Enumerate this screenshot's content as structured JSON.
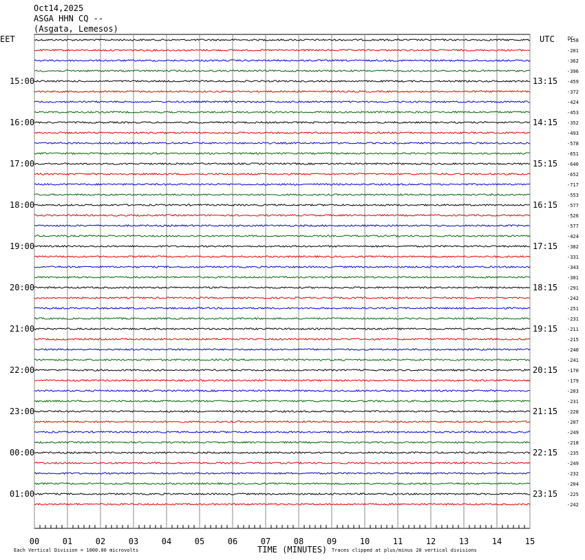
{
  "header": {
    "date": "Oct14,2025",
    "station": "ASGA HHN CQ --",
    "location": "(Asgata, Lemesos)"
  },
  "left_zone": "EET",
  "right_zone": "UTC",
  "dc_heading": "DC",
  "trace_colors": [
    "#000000",
    "#e00000",
    "#0000d0",
    "#006400"
  ],
  "left_hours": [
    "15:00",
    "16:00",
    "17:00",
    "18:00",
    "19:00",
    "20:00",
    "21:00",
    "22:00",
    "23:00",
    "00:00",
    "01:00"
  ],
  "right_hours": [
    "13:15",
    "14:15",
    "15:15",
    "16:15",
    "17:15",
    "18:15",
    "19:15",
    "20:15",
    "21:15",
    "22:15",
    "23:15"
  ],
  "dc_offsets": [
    -158,
    -201,
    -362,
    -396,
    -459,
    -372,
    -424,
    -453,
    -352,
    -493,
    -578,
    -651,
    -640,
    -652,
    -717,
    -553,
    -577,
    -526,
    -577,
    -424,
    -382,
    -331,
    -343,
    -301,
    -291,
    -242,
    -251,
    -231,
    -211,
    -215,
    -240,
    -241,
    -170,
    -179,
    -203,
    -231,
    -228,
    -207,
    -249,
    -218,
    -235,
    -249,
    -232,
    -204,
    -225,
    -242
  ],
  "x_axis": {
    "xlim": [
      0,
      15
    ],
    "xlabel": "TIME (MINUTES)",
    "xticks": [
      {
        "value": 0,
        "label": "00"
      },
      {
        "value": 1,
        "label": "01"
      },
      {
        "value": 2,
        "label": "02"
      },
      {
        "value": 3,
        "label": "03"
      },
      {
        "value": 4,
        "label": "04"
      },
      {
        "value": 5,
        "label": "05"
      },
      {
        "value": 6,
        "label": "06"
      },
      {
        "value": 7,
        "label": "07"
      },
      {
        "value": 8,
        "label": "08"
      },
      {
        "value": 9,
        "label": "09"
      },
      10,
      11,
      12,
      13,
      14,
      15
    ]
  },
  "footer": {
    "scale": "Each Vertical Division = 1000.00 microvolts",
    "clip": "Traces clipped at plus/minus 20 vertical divisions"
  }
}
